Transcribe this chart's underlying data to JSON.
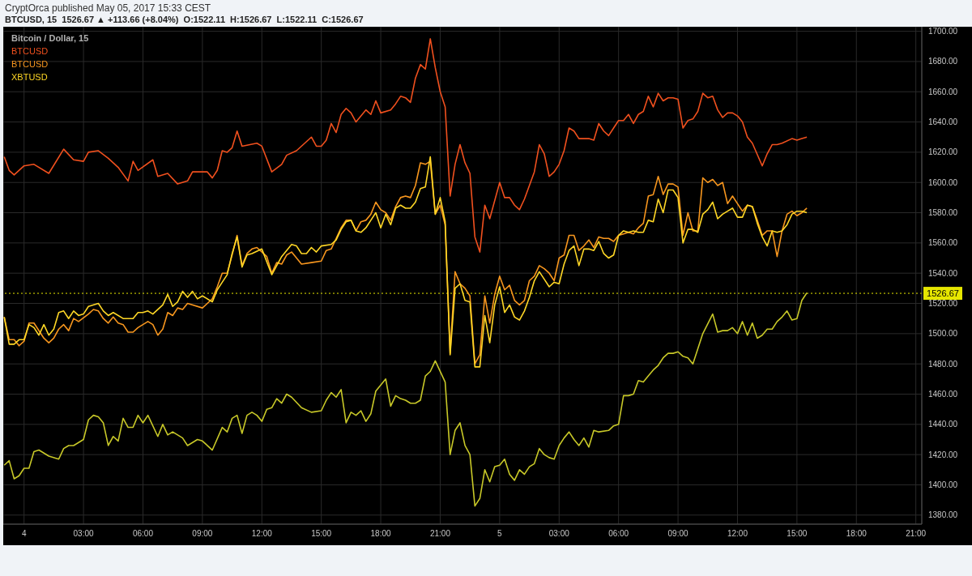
{
  "chart_data": {
    "type": "line",
    "title": "Bitcoin / Dollar, 15",
    "subtitle": "BTCUSD, 15  1526.67 ▲ +113.66 (+8.04%)  O:1522.11  H:1526.67  L:1522.11  C:1526.67",
    "annotations": [
      "CryptOrca published May 05, 2017 15:33 CEST"
    ],
    "xlim": [
      "2017-05-03T22:57",
      "2017-05-05T21:18"
    ],
    "xticks": [
      {
        "value": "2017-05-04T00:00",
        "label": "4"
      },
      {
        "value": "2017-05-04T03:00",
        "label": "03:00"
      },
      {
        "value": "2017-05-04T06:00",
        "label": "06:00"
      },
      {
        "value": "2017-05-04T09:00",
        "label": "09:00"
      },
      {
        "value": "2017-05-04T12:00",
        "label": "12:00"
      },
      {
        "value": "2017-05-04T15:00",
        "label": "15:00"
      },
      {
        "value": "2017-05-04T18:00",
        "label": "18:00"
      },
      {
        "value": "2017-05-04T21:00",
        "label": "21:00"
      },
      {
        "value": "2017-05-05T00:00",
        "label": "5"
      },
      {
        "value": "2017-05-05T03:00",
        "label": "03:00"
      },
      {
        "value": "2017-05-05T06:00",
        "label": "06:00"
      },
      {
        "value": "2017-05-05T09:00",
        "label": "09:00"
      },
      {
        "value": "2017-05-05T12:00",
        "label": "12:00"
      },
      {
        "value": "2017-05-05T15:00",
        "label": "15:00"
      },
      {
        "value": "2017-05-05T18:00",
        "label": "18:00"
      },
      {
        "value": "2017-05-05T21:00",
        "label": "21:00"
      }
    ],
    "ylim": [
      1374,
      1703
    ],
    "yticks": [
      {
        "value": 1380,
        "label": "1380.00"
      },
      {
        "value": 1400,
        "label": "1400.00"
      },
      {
        "value": 1420,
        "label": "1420.00"
      },
      {
        "value": 1440,
        "label": "1440.00"
      },
      {
        "value": 1460,
        "label": "1460.00"
      },
      {
        "value": 1480,
        "label": "1480.00"
      },
      {
        "value": 1500,
        "label": "1500.00"
      },
      {
        "value": 1520,
        "label": "1520.00"
      },
      {
        "value": 1540,
        "label": "1540.00"
      },
      {
        "value": 1560,
        "label": "1560.00"
      },
      {
        "value": 1580,
        "label": "1580.00"
      },
      {
        "value": 1600,
        "label": "1600.00"
      },
      {
        "value": 1620,
        "label": "1620.00"
      },
      {
        "value": 1640,
        "label": "1640.00"
      },
      {
        "value": 1660,
        "label": "1660.00"
      },
      {
        "value": 1680,
        "label": "1680.00"
      },
      {
        "value": 1700,
        "label": "1700.00"
      }
    ],
    "grid": true,
    "legend": "top left",
    "marker": "none",
    "line_style": "solid",
    "ref_lines": [
      {
        "axis": "y",
        "value": 1526.67,
        "label": "1526.67",
        "color": "#e6e600",
        "line_style": "dotted"
      }
    ],
    "series": [
      {
        "color": "#c8c828",
        "x": [
          "2017-05-03T23:00",
          "2017-05-03T23:15",
          "2017-05-03T23:30",
          "2017-05-03T23:45",
          "2017-05-04T00:00",
          "2017-05-04T00:15",
          "2017-05-04T00:30",
          "2017-05-04T00:45",
          "2017-05-04T01:15",
          "2017-05-04T01:45",
          "2017-05-04T02:00",
          "2017-05-04T02:15",
          "2017-05-04T02:30",
          "2017-05-04T03:00",
          "2017-05-04T03:15",
          "2017-05-04T03:30",
          "2017-05-04T03:45",
          "2017-05-04T04:00",
          "2017-05-04T04:15",
          "2017-05-04T04:30",
          "2017-05-04T04:45",
          "2017-05-04T05:00",
          "2017-05-04T05:15",
          "2017-05-04T05:30",
          "2017-05-04T05:45",
          "2017-05-04T06:00",
          "2017-05-04T06:15",
          "2017-05-04T06:45",
          "2017-05-04T07:00",
          "2017-05-04T07:15",
          "2017-05-04T07:30",
          "2017-05-04T08:00",
          "2017-05-04T08:15",
          "2017-05-04T08:45",
          "2017-05-04T09:00",
          "2017-05-04T09:30",
          "2017-05-04T10:00",
          "2017-05-04T10:15",
          "2017-05-04T10:30",
          "2017-05-04T10:45",
          "2017-05-04T11:00",
          "2017-05-04T11:15",
          "2017-05-04T11:30",
          "2017-05-04T11:45",
          "2017-05-04T12:00",
          "2017-05-04T12:15",
          "2017-05-04T12:30",
          "2017-05-04T12:45",
          "2017-05-04T13:00",
          "2017-05-04T13:15",
          "2017-05-04T13:30",
          "2017-05-04T14:00",
          "2017-05-04T14:30",
          "2017-05-04T15:00",
          "2017-05-04T15:15",
          "2017-05-04T15:30",
          "2017-05-04T15:45",
          "2017-05-04T16:00",
          "2017-05-04T16:15",
          "2017-05-04T16:30",
          "2017-05-04T16:45",
          "2017-05-04T17:00",
          "2017-05-04T17:15",
          "2017-05-04T17:30",
          "2017-05-04T17:45",
          "2017-05-04T18:15",
          "2017-05-04T18:30",
          "2017-05-04T18:45",
          "2017-05-04T19:00",
          "2017-05-04T19:15",
          "2017-05-04T19:30",
          "2017-05-04T19:45",
          "2017-05-04T20:00",
          "2017-05-04T20:15",
          "2017-05-04T20:30",
          "2017-05-04T20:45",
          "2017-05-04T21:15",
          "2017-05-04T21:30",
          "2017-05-04T21:45",
          "2017-05-04T22:00",
          "2017-05-04T22:15",
          "2017-05-04T22:30",
          "2017-05-04T22:45",
          "2017-05-04T23:00",
          "2017-05-04T23:15",
          "2017-05-04T23:30",
          "2017-05-04T23:45",
          "2017-05-05T00:00",
          "2017-05-05T00:15",
          "2017-05-05T00:30",
          "2017-05-05T00:45",
          "2017-05-05T01:00",
          "2017-05-05T01:15",
          "2017-05-05T01:30",
          "2017-05-05T01:45",
          "2017-05-05T02:00",
          "2017-05-05T02:15",
          "2017-05-05T02:30",
          "2017-05-05T02:45",
          "2017-05-05T03:00",
          "2017-05-05T03:15",
          "2017-05-05T03:30",
          "2017-05-05T03:45",
          "2017-05-05T04:00",
          "2017-05-05T04:15",
          "2017-05-05T04:30",
          "2017-05-05T04:45",
          "2017-05-05T05:00",
          "2017-05-05T05:30",
          "2017-05-05T05:45",
          "2017-05-05T06:00",
          "2017-05-05T06:15",
          "2017-05-05T06:30",
          "2017-05-05T06:45",
          "2017-05-05T07:00",
          "2017-05-05T07:15",
          "2017-05-05T07:30",
          "2017-05-05T07:45",
          "2017-05-05T08:00",
          "2017-05-05T08:15",
          "2017-05-05T08:30",
          "2017-05-05T08:45",
          "2017-05-05T09:00",
          "2017-05-05T09:15",
          "2017-05-05T09:30",
          "2017-05-05T09:45",
          "2017-05-05T10:00",
          "2017-05-05T10:15",
          "2017-05-05T10:45",
          "2017-05-05T11:00",
          "2017-05-05T11:15",
          "2017-05-05T11:30",
          "2017-05-05T11:45",
          "2017-05-05T12:00",
          "2017-05-05T12:15",
          "2017-05-05T12:30",
          "2017-05-05T12:45",
          "2017-05-05T13:00",
          "2017-05-05T13:15",
          "2017-05-05T13:30",
          "2017-05-05T13:45",
          "2017-05-05T14:00",
          "2017-05-05T14:15",
          "2017-05-05T14:30",
          "2017-05-05T14:45",
          "2017-05-05T15:00",
          "2017-05-05T15:15",
          "2017-05-05T15:30"
        ],
        "values": [
          1413,
          1416,
          1404,
          1406,
          1411,
          1411,
          1422,
          1423,
          1419,
          1417,
          1424,
          1426,
          1426,
          1430,
          1443,
          1446,
          1445,
          1441,
          1426,
          1432,
          1429,
          1444,
          1438,
          1438,
          1446,
          1441,
          1446,
          1432,
          1440,
          1433,
          1435,
          1431,
          1426,
          1430,
          1429,
          1423,
          1438,
          1435,
          1444,
          1446,
          1434,
          1446,
          1448,
          1446,
          1442,
          1450,
          1451,
          1457,
          1454,
          1460,
          1458,
          1451,
          1448,
          1449,
          1456,
          1461,
          1458,
          1463,
          1441,
          1448,
          1446,
          1449,
          1442,
          1447,
          1462,
          1470,
          1452,
          1459,
          1457,
          1456,
          1454,
          1454,
          1456,
          1472,
          1475,
          1482,
          1468,
          1420,
          1436,
          1441,
          1426,
          1420,
          1386,
          1391,
          1410,
          1402,
          1412,
          1413,
          1417,
          1407,
          1403,
          1410,
          1407,
          1412,
          1414,
          1424,
          1420,
          1418,
          1417,
          1426,
          1431,
          1435,
          1430,
          1426,
          1431,
          1425,
          1436,
          1435,
          1436,
          1439,
          1440,
          1459,
          1459,
          1460,
          1469,
          1468,
          1472,
          1476,
          1479,
          1484,
          1487,
          1487,
          1488,
          1485,
          1484,
          1480,
          1490,
          1500,
          1513,
          1501,
          1502,
          1502,
          1504,
          1500,
          1508,
          1499,
          1507,
          1497,
          1499,
          1503,
          1503,
          1508,
          1511,
          1515,
          1509,
          1510,
          1522,
          1527
        ]
      },
      {
        "name": "BTCUSD",
        "color": "#f0501e",
        "x": [
          "2017-05-03T23:00",
          "2017-05-03T23:15",
          "2017-05-03T23:30",
          "2017-05-04T00:00",
          "2017-05-04T00:30",
          "2017-05-04T01:15",
          "2017-05-04T02:00",
          "2017-05-04T02:30",
          "2017-05-04T03:00",
          "2017-05-04T03:15",
          "2017-05-04T03:45",
          "2017-05-04T04:15",
          "2017-05-04T04:45",
          "2017-05-04T05:15",
          "2017-05-04T05:30",
          "2017-05-04T05:45",
          "2017-05-04T06:30",
          "2017-05-04T06:45",
          "2017-05-04T07:15",
          "2017-05-04T07:45",
          "2017-05-04T08:15",
          "2017-05-04T08:30",
          "2017-05-04T09:15",
          "2017-05-04T09:30",
          "2017-05-04T09:45",
          "2017-05-04T10:00",
          "2017-05-04T10:15",
          "2017-05-04T10:30",
          "2017-05-04T10:45",
          "2017-05-04T11:00",
          "2017-05-04T11:45",
          "2017-05-04T12:00",
          "2017-05-04T12:30",
          "2017-05-04T13:00",
          "2017-05-04T13:15",
          "2017-05-04T13:45",
          "2017-05-04T14:30",
          "2017-05-04T14:45",
          "2017-05-04T15:00",
          "2017-05-04T15:15",
          "2017-05-04T15:30",
          "2017-05-04T15:45",
          "2017-05-04T16:00",
          "2017-05-04T16:15",
          "2017-05-04T16:30",
          "2017-05-04T16:45",
          "2017-05-04T17:15",
          "2017-05-04T17:30",
          "2017-05-04T17:45",
          "2017-05-04T18:00",
          "2017-05-04T18:30",
          "2017-05-04T18:45",
          "2017-05-04T19:00",
          "2017-05-04T19:15",
          "2017-05-04T19:30",
          "2017-05-04T19:45",
          "2017-05-04T20:00",
          "2017-05-04T20:15",
          "2017-05-04T20:30",
          "2017-05-04T20:45",
          "2017-05-04T21:00",
          "2017-05-04T21:15",
          "2017-05-04T21:30",
          "2017-05-04T21:45",
          "2017-05-04T22:00",
          "2017-05-04T22:15",
          "2017-05-04T22:30",
          "2017-05-04T22:45",
          "2017-05-04T23:00",
          "2017-05-04T23:15",
          "2017-05-04T23:30",
          "2017-05-05T00:00",
          "2017-05-05T00:15",
          "2017-05-05T00:30",
          "2017-05-05T00:45",
          "2017-05-05T01:00",
          "2017-05-05T01:15",
          "2017-05-05T01:45",
          "2017-05-05T02:00",
          "2017-05-05T02:15",
          "2017-05-05T02:30",
          "2017-05-05T02:45",
          "2017-05-05T03:00",
          "2017-05-05T03:15",
          "2017-05-05T03:30",
          "2017-05-05T03:45",
          "2017-05-05T04:00",
          "2017-05-05T04:30",
          "2017-05-05T04:45",
          "2017-05-05T05:00",
          "2017-05-05T05:15",
          "2017-05-05T05:30",
          "2017-05-05T05:45",
          "2017-05-05T06:00",
          "2017-05-05T06:15",
          "2017-05-05T06:30",
          "2017-05-05T06:45",
          "2017-05-05T07:00",
          "2017-05-05T07:15",
          "2017-05-05T07:30",
          "2017-05-05T07:45",
          "2017-05-05T08:00",
          "2017-05-05T08:15",
          "2017-05-05T08:30",
          "2017-05-05T08:45",
          "2017-05-05T09:00",
          "2017-05-05T09:15",
          "2017-05-05T09:30",
          "2017-05-05T09:45",
          "2017-05-05T10:00",
          "2017-05-05T10:15",
          "2017-05-05T10:30",
          "2017-05-05T10:45",
          "2017-05-05T11:00",
          "2017-05-05T11:15",
          "2017-05-05T11:30",
          "2017-05-05T11:45",
          "2017-05-05T12:00",
          "2017-05-05T12:15",
          "2017-05-05T12:30",
          "2017-05-05T12:45",
          "2017-05-05T13:15",
          "2017-05-05T13:30",
          "2017-05-05T13:45",
          "2017-05-05T14:00",
          "2017-05-05T14:15",
          "2017-05-05T14:45",
          "2017-05-05T15:00",
          "2017-05-05T15:15",
          "2017-05-05T15:30"
        ],
        "values": [
          1617,
          1608,
          1605,
          1611,
          1612,
          1606,
          1622,
          1615,
          1614,
          1620,
          1621,
          1616,
          1610,
          1601,
          1614,
          1608,
          1615,
          1604,
          1606,
          1599,
          1601,
          1607,
          1607,
          1603,
          1608,
          1621,
          1620,
          1623,
          1634,
          1624,
          1626,
          1624,
          1607,
          1612,
          1618,
          1621,
          1630,
          1624,
          1624,
          1628,
          1639,
          1633,
          1645,
          1649,
          1646,
          1640,
          1648,
          1645,
          1654,
          1646,
          1648,
          1652,
          1657,
          1656,
          1653,
          1669,
          1678,
          1675,
          1695,
          1676,
          1660,
          1650,
          1591,
          1612,
          1625,
          1613,
          1606,
          1564,
          1554,
          1585,
          1576,
          1600,
          1590,
          1590,
          1585,
          1582,
          1589,
          1607,
          1625,
          1619,
          1604,
          1607,
          1612,
          1621,
          1636,
          1634,
          1629,
          1629,
          1628,
          1639,
          1634,
          1631,
          1636,
          1641,
          1641,
          1645,
          1639,
          1645,
          1647,
          1657,
          1650,
          1659,
          1654,
          1656,
          1656,
          1655,
          1636,
          1641,
          1642,
          1647,
          1659,
          1656,
          1657,
          1648,
          1643,
          1646,
          1646,
          1644,
          1640,
          1630,
          1626,
          1611,
          1619,
          1625,
          1625,
          1626,
          1629,
          1628,
          1629,
          1630
        ]
      },
      {
        "name": "BTCUSD",
        "color": "#f7961e",
        "x": [
          "2017-05-03T23:00",
          "2017-05-03T23:15",
          "2017-05-03T23:30",
          "2017-05-03T23:45",
          "2017-05-04T00:00",
          "2017-05-04T00:15",
          "2017-05-04T00:30",
          "2017-05-04T01:00",
          "2017-05-04T01:15",
          "2017-05-04T01:30",
          "2017-05-04T01:45",
          "2017-05-04T02:00",
          "2017-05-04T02:15",
          "2017-05-04T02:30",
          "2017-05-04T02:45",
          "2017-05-04T03:15",
          "2017-05-04T03:30",
          "2017-05-04T03:45",
          "2017-05-04T04:00",
          "2017-05-04T04:15",
          "2017-05-04T04:30",
          "2017-05-04T04:45",
          "2017-05-04T05:00",
          "2017-05-04T05:15",
          "2017-05-04T05:30",
          "2017-05-04T05:45",
          "2017-05-04T06:15",
          "2017-05-04T06:30",
          "2017-05-04T06:45",
          "2017-05-04T07:00",
          "2017-05-04T07:15",
          "2017-05-04T07:30",
          "2017-05-04T07:45",
          "2017-05-04T08:00",
          "2017-05-04T08:15",
          "2017-05-04T09:00",
          "2017-05-04T09:15",
          "2017-05-04T09:30",
          "2017-05-04T09:45",
          "2017-05-04T10:00",
          "2017-05-04T10:15",
          "2017-05-04T10:30",
          "2017-05-04T10:45",
          "2017-05-04T11:00",
          "2017-05-04T11:15",
          "2017-05-04T11:30",
          "2017-05-04T11:45",
          "2017-05-04T12:15",
          "2017-05-04T12:30",
          "2017-05-04T12:45",
          "2017-05-04T13:00",
          "2017-05-04T13:15",
          "2017-05-04T13:30",
          "2017-05-04T14:00",
          "2017-05-04T14:30",
          "2017-05-04T15:00",
          "2017-05-04T15:15",
          "2017-05-04T15:30",
          "2017-05-04T15:45",
          "2017-05-04T16:00",
          "2017-05-04T16:15",
          "2017-05-04T16:30",
          "2017-05-04T16:45",
          "2017-05-04T17:00",
          "2017-05-04T17:15",
          "2017-05-04T17:30",
          "2017-05-04T17:45",
          "2017-05-04T18:00",
          "2017-05-04T18:15",
          "2017-05-04T18:30",
          "2017-05-04T18:45",
          "2017-05-04T19:00",
          "2017-05-04T19:15",
          "2017-05-04T19:30",
          "2017-05-04T19:45",
          "2017-05-04T20:00",
          "2017-05-04T20:15",
          "2017-05-04T20:30",
          "2017-05-04T20:45",
          "2017-05-04T21:00",
          "2017-05-04T21:15",
          "2017-05-04T21:30",
          "2017-05-04T21:45",
          "2017-05-04T22:00",
          "2017-05-04T22:15",
          "2017-05-04T22:30",
          "2017-05-04T22:45",
          "2017-05-04T23:00",
          "2017-05-04T23:15",
          "2017-05-04T23:30",
          "2017-05-04T23:45",
          "2017-05-05T00:00",
          "2017-05-05T00:15",
          "2017-05-05T00:30",
          "2017-05-05T00:45",
          "2017-05-05T01:00",
          "2017-05-05T01:15",
          "2017-05-05T01:30",
          "2017-05-05T01:45",
          "2017-05-05T02:00",
          "2017-05-05T02:15",
          "2017-05-05T02:30",
          "2017-05-05T02:45",
          "2017-05-05T03:00",
          "2017-05-05T03:15",
          "2017-05-05T03:30",
          "2017-05-05T03:45",
          "2017-05-05T04:00",
          "2017-05-05T04:15",
          "2017-05-05T04:30",
          "2017-05-05T04:45",
          "2017-05-05T05:00",
          "2017-05-05T05:15",
          "2017-05-05T05:30",
          "2017-05-05T05:45",
          "2017-05-05T06:00",
          "2017-05-05T06:15",
          "2017-05-05T06:30",
          "2017-05-05T06:45",
          "2017-05-05T07:00",
          "2017-05-05T07:15",
          "2017-05-05T07:30",
          "2017-05-05T07:45",
          "2017-05-05T08:00",
          "2017-05-05T08:15",
          "2017-05-05T08:30",
          "2017-05-05T08:45",
          "2017-05-05T09:00",
          "2017-05-05T09:15",
          "2017-05-05T09:30",
          "2017-05-05T09:45",
          "2017-05-05T10:00",
          "2017-05-05T10:15",
          "2017-05-05T10:30",
          "2017-05-05T10:45",
          "2017-05-05T11:00",
          "2017-05-05T11:15",
          "2017-05-05T11:30",
          "2017-05-05T11:45",
          "2017-05-05T12:00",
          "2017-05-05T12:15",
          "2017-05-05T12:30",
          "2017-05-05T12:45",
          "2017-05-05T13:00",
          "2017-05-05T13:15",
          "2017-05-05T13:30",
          "2017-05-05T13:45",
          "2017-05-05T14:00",
          "2017-05-05T14:15",
          "2017-05-05T14:30",
          "2017-05-05T14:45",
          "2017-05-05T15:00",
          "2017-05-05T15:15",
          "2017-05-05T15:30"
        ],
        "values": [
          1511,
          1496,
          1496,
          1492,
          1495,
          1507,
          1507,
          1497,
          1494,
          1497,
          1503,
          1506,
          1502,
          1510,
          1508,
          1513,
          1516,
          1515,
          1510,
          1507,
          1511,
          1507,
          1506,
          1501,
          1501,
          1504,
          1508,
          1506,
          1499,
          1503,
          1514,
          1512,
          1517,
          1516,
          1520,
          1517,
          1520,
          1523,
          1531,
          1540,
          1540,
          1552,
          1565,
          1545,
          1553,
          1556,
          1557,
          1551,
          1540,
          1547,
          1546,
          1552,
          1554,
          1546,
          1547,
          1548,
          1555,
          1556,
          1563,
          1570,
          1575,
          1575,
          1568,
          1574,
          1575,
          1579,
          1587,
          1582,
          1580,
          1575,
          1584,
          1590,
          1591,
          1590,
          1598,
          1613,
          1612,
          1614,
          1579,
          1585,
          1572,
          1487,
          1541,
          1533,
          1530,
          1525,
          1480,
          1486,
          1525,
          1507,
          1526,
          1538,
          1529,
          1532,
          1522,
          1519,
          1522,
          1535,
          1538,
          1545,
          1543,
          1540,
          1535,
          1550,
          1552,
          1565,
          1565,
          1555,
          1558,
          1562,
          1557,
          1564,
          1563,
          1563,
          1561,
          1565,
          1566,
          1567,
          1566,
          1570,
          1573,
          1591,
          1592,
          1604,
          1592,
          1599,
          1599,
          1597,
          1565,
          1580,
          1568,
          1568,
          1603,
          1600,
          1602,
          1598,
          1600,
          1586,
          1591,
          1586,
          1581,
          1585,
          1584,
          1575,
          1565,
          1568,
          1568,
          1551,
          1568,
          1579,
          1581,
          1578,
          1580,
          1583
        ]
      },
      {
        "name": "XBTUSD",
        "color": "#ffd726",
        "x": [
          "2017-05-03T23:00",
          "2017-05-03T23:15",
          "2017-05-03T23:30",
          "2017-05-03T23:45",
          "2017-05-04T00:00",
          "2017-05-04T00:15",
          "2017-05-04T00:30",
          "2017-05-04T00:45",
          "2017-05-04T01:00",
          "2017-05-04T01:15",
          "2017-05-04T01:30",
          "2017-05-04T01:45",
          "2017-05-04T02:00",
          "2017-05-04T02:15",
          "2017-05-04T02:30",
          "2017-05-04T02:45",
          "2017-05-04T03:00",
          "2017-05-04T03:15",
          "2017-05-04T03:45",
          "2017-05-04T04:00",
          "2017-05-04T04:15",
          "2017-05-04T04:30",
          "2017-05-04T05:00",
          "2017-05-04T05:30",
          "2017-05-04T05:45",
          "2017-05-04T06:00",
          "2017-05-04T06:15",
          "2017-05-04T06:30",
          "2017-05-04T07:00",
          "2017-05-04T07:15",
          "2017-05-04T07:30",
          "2017-05-04T07:45",
          "2017-05-04T08:00",
          "2017-05-04T08:15",
          "2017-05-04T08:30",
          "2017-05-04T08:45",
          "2017-05-04T09:00",
          "2017-05-04T09:30",
          "2017-05-04T09:45",
          "2017-05-04T10:00",
          "2017-05-04T10:15",
          "2017-05-04T10:30",
          "2017-05-04T10:45",
          "2017-05-04T11:00",
          "2017-05-04T11:15",
          "2017-05-04T11:30",
          "2017-05-04T12:00",
          "2017-05-04T12:30",
          "2017-05-04T12:45",
          "2017-05-04T13:00",
          "2017-05-04T13:30",
          "2017-05-04T13:45",
          "2017-05-04T14:00",
          "2017-05-04T14:15",
          "2017-05-04T14:30",
          "2017-05-04T14:45",
          "2017-05-04T15:00",
          "2017-05-04T15:30",
          "2017-05-04T15:45",
          "2017-05-04T16:00",
          "2017-05-04T16:15",
          "2017-05-04T16:30",
          "2017-05-04T16:45",
          "2017-05-04T17:00",
          "2017-05-04T17:15",
          "2017-05-04T17:30",
          "2017-05-04T17:45",
          "2017-05-04T18:00",
          "2017-05-04T18:15",
          "2017-05-04T18:30",
          "2017-05-04T18:45",
          "2017-05-04T19:00",
          "2017-05-04T19:15",
          "2017-05-04T19:30",
          "2017-05-04T19:45",
          "2017-05-04T20:00",
          "2017-05-04T20:15",
          "2017-05-04T20:30",
          "2017-05-04T20:45",
          "2017-05-04T21:00",
          "2017-05-04T21:15",
          "2017-05-04T21:30",
          "2017-05-04T21:45",
          "2017-05-04T22:00",
          "2017-05-04T22:15",
          "2017-05-04T22:30",
          "2017-05-04T22:45",
          "2017-05-04T23:00",
          "2017-05-04T23:15",
          "2017-05-04T23:30",
          "2017-05-04T23:45",
          "2017-05-05T00:00",
          "2017-05-05T00:15",
          "2017-05-05T00:30",
          "2017-05-05T00:45",
          "2017-05-05T01:00",
          "2017-05-05T01:15",
          "2017-05-05T01:30",
          "2017-05-05T01:45",
          "2017-05-05T02:00",
          "2017-05-05T02:15",
          "2017-05-05T02:30",
          "2017-05-05T02:45",
          "2017-05-05T03:00",
          "2017-05-05T03:15",
          "2017-05-05T03:30",
          "2017-05-05T03:45",
          "2017-05-05T04:00",
          "2017-05-05T04:15",
          "2017-05-05T04:30",
          "2017-05-05T04:45",
          "2017-05-05T05:00",
          "2017-05-05T05:15",
          "2017-05-05T05:30",
          "2017-05-05T05:45",
          "2017-05-05T06:00",
          "2017-05-05T06:15",
          "2017-05-05T06:30",
          "2017-05-05T06:45",
          "2017-05-05T07:00",
          "2017-05-05T07:15",
          "2017-05-05T07:30",
          "2017-05-05T07:45",
          "2017-05-05T08:00",
          "2017-05-05T08:15",
          "2017-05-05T08:30",
          "2017-05-05T08:45",
          "2017-05-05T09:00",
          "2017-05-05T09:15",
          "2017-05-05T09:30",
          "2017-05-05T09:45",
          "2017-05-05T10:00",
          "2017-05-05T10:15",
          "2017-05-05T10:30",
          "2017-05-05T10:45",
          "2017-05-05T11:00",
          "2017-05-05T11:15",
          "2017-05-05T11:30",
          "2017-05-05T11:45",
          "2017-05-05T12:00",
          "2017-05-05T12:15",
          "2017-05-05T12:30",
          "2017-05-05T12:45",
          "2017-05-05T13:00",
          "2017-05-05T13:15",
          "2017-05-05T13:30",
          "2017-05-05T13:45",
          "2017-05-05T14:00",
          "2017-05-05T14:15",
          "2017-05-05T14:30",
          "2017-05-05T14:45",
          "2017-05-05T15:00",
          "2017-05-05T15:15",
          "2017-05-05T15:30"
        ],
        "values": [
          1511,
          1493,
          1493,
          1496,
          1496,
          1506,
          1504,
          1499,
          1506,
          1499,
          1503,
          1514,
          1515,
          1510,
          1515,
          1512,
          1513,
          1518,
          1520,
          1515,
          1512,
          1514,
          1510,
          1510,
          1514,
          1514,
          1515,
          1513,
          1519,
          1526,
          1518,
          1521,
          1528,
          1524,
          1528,
          1523,
          1525,
          1521,
          1529,
          1534,
          1539,
          1553,
          1564,
          1544,
          1552,
          1553,
          1556,
          1539,
          1545,
          1551,
          1559,
          1558,
          1553,
          1553,
          1557,
          1554,
          1558,
          1559,
          1562,
          1569,
          1574,
          1575,
          1568,
          1567,
          1570,
          1575,
          1580,
          1570,
          1579,
          1572,
          1583,
          1585,
          1583,
          1583,
          1587,
          1596,
          1597,
          1617,
          1579,
          1590,
          1574,
          1486,
          1530,
          1533,
          1522,
          1521,
          1478,
          1478,
          1512,
          1494,
          1519,
          1531,
          1514,
          1519,
          1511,
          1509,
          1515,
          1524,
          1535,
          1541,
          1536,
          1531,
          1534,
          1533,
          1546,
          1555,
          1558,
          1545,
          1556,
          1556,
          1555,
          1561,
          1553,
          1550,
          1552,
          1565,
          1568,
          1567,
          1568,
          1567,
          1567,
          1575,
          1574,
          1589,
          1580,
          1595,
          1595,
          1590,
          1560,
          1569,
          1569,
          1567,
          1579,
          1582,
          1587,
          1576,
          1579,
          1581,
          1583,
          1577,
          1577,
          1585,
          1584,
          1573,
          1564,
          1558,
          1568,
          1567,
          1568,
          1572,
          1579,
          1581,
          1581,
          1580
        ]
      }
    ]
  }
}
